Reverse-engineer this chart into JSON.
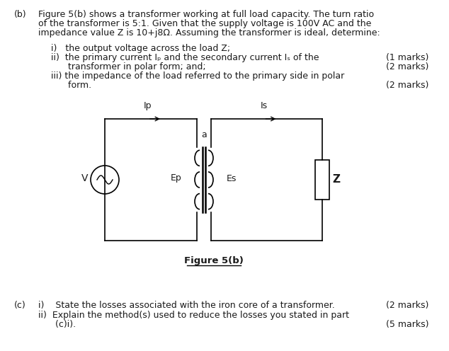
{
  "bg_color": "#ffffff",
  "text_color": "#1a1a1a",
  "fig_width": 6.34,
  "fig_height": 4.96,
  "dpi": 100,
  "part_b_label": "(b)",
  "part_b_line1": "Figure 5(b) shows a transformer working at full load capacity. The turn ratio",
  "part_b_line2": "of the transformer is 5:1. Given that the supply voltage is 100V AC and the",
  "part_b_line3": "impedance value Z is 10+j8Ω. Assuming the transformer is ideal, determine:",
  "item_i": "i)   the output voltage across the load Z;",
  "item_ii_1": "ii)  the primary current Iₚ and the secondary current Iₛ of the",
  "item_ii_2": "      transformer in polar form; and;",
  "item_iii_1": "iii) the impedance of the load referred to the primary side in polar",
  "item_iii_2": "      form.",
  "marks_i": "(1 marks)",
  "marks_ii": "(2 marks)",
  "marks_iii": "(2 marks)",
  "figure_caption": "Figure 5(b)",
  "part_c_label": "(c)",
  "part_c_i": "i)    State the losses associated with the iron core of a transformer.",
  "part_c_ii_1": "ii)  Explain the method(s) used to reduce the losses you stated in part",
  "part_c_ii_2": "      (c)i).",
  "marks_c_i": "(2 marks)",
  "marks_c_ii": "(5 marks)",
  "font_size": 9.0
}
